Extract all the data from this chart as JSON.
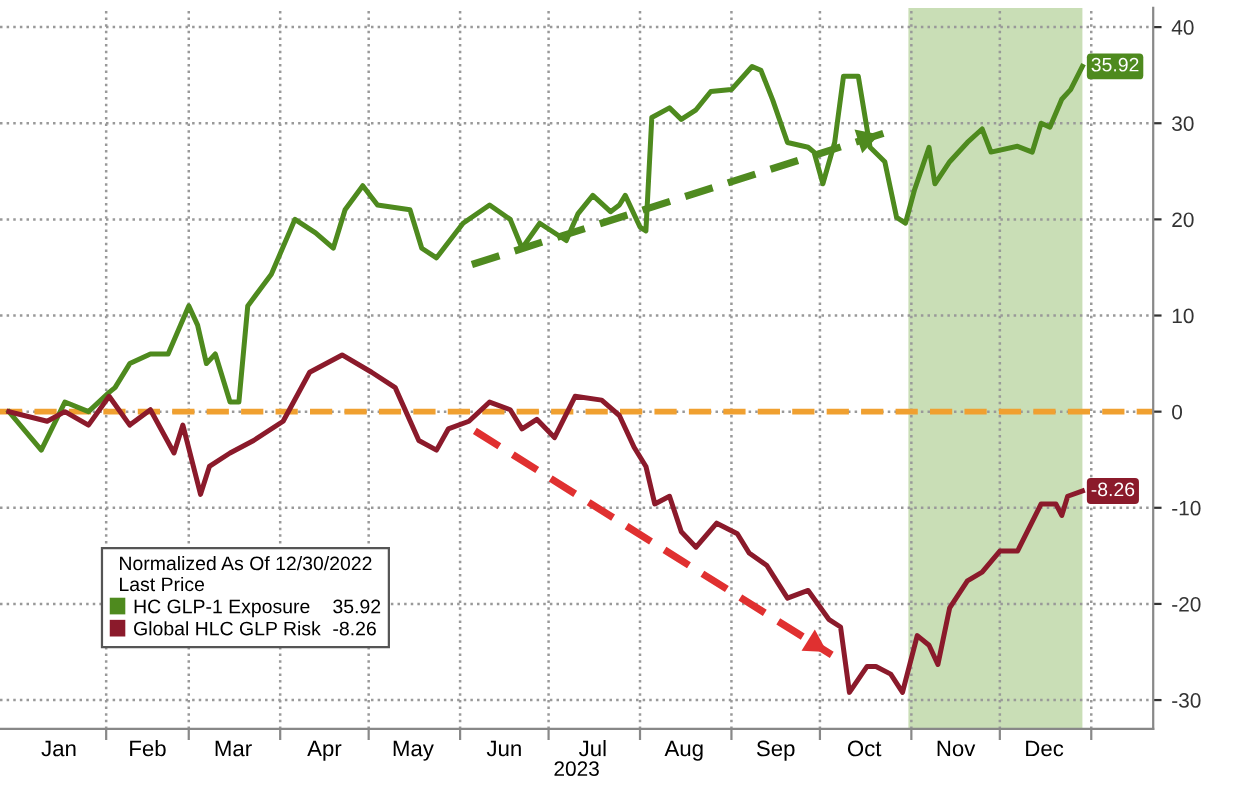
{
  "chart_data": {
    "type": "line",
    "xlabel": "2023",
    "legend_title": "Normalized As Of 12/30/2022\nLast Price",
    "xlim": [
      "2022-12-27",
      "2024-01-22"
    ],
    "ylim": [
      -33,
      42
    ],
    "xticks": [
      {
        "value": "2023-02-01",
        "label": null
      },
      {
        "value": "2023-03-01",
        "label": null
      },
      {
        "value": "2023-04-01",
        "label": null
      },
      {
        "value": "2023-05-01",
        "label": null
      },
      {
        "value": "2023-06-01",
        "label": null
      },
      {
        "value": "2023-07-01",
        "label": null
      },
      {
        "value": "2023-08-01",
        "label": null
      },
      {
        "value": "2023-09-01",
        "label": null
      },
      {
        "value": "2023-10-01",
        "label": null
      },
      {
        "value": "2023-11-01",
        "label": null
      },
      {
        "value": "2023-12-01",
        "label": null
      },
      {
        "value": "2024-01-01",
        "label": null
      },
      {
        "value": "2023-01-16",
        "label": "Jan"
      },
      {
        "value": "2023-02-15",
        "label": "Feb"
      },
      {
        "value": "2023-03-16",
        "label": "Mar"
      },
      {
        "value": "2023-04-16",
        "label": "Apr"
      },
      {
        "value": "2023-05-16",
        "label": "May"
      },
      {
        "value": "2023-06-16",
        "label": "Jun"
      },
      {
        "value": "2023-07-16",
        "label": "Jul"
      },
      {
        "value": "2023-08-16",
        "label": "Aug"
      },
      {
        "value": "2023-09-16",
        "label": "Sep"
      },
      {
        "value": "2023-10-16",
        "label": "Oct"
      },
      {
        "value": "2023-11-16",
        "label": "Nov"
      },
      {
        "value": "2023-12-16",
        "label": "Dec"
      }
    ],
    "yticks": [
      -30,
      -20,
      -10,
      0,
      10,
      20,
      30,
      40
    ],
    "grid": true,
    "legend": "bottom left",
    "ref_lines": [
      {
        "axis": "y",
        "value": 0,
        "label": null,
        "color": "#f0a030",
        "line_style": "dashed"
      }
    ],
    "bands": [
      {
        "axis": "x",
        "from": "2023-10-31",
        "to": "2023-12-29",
        "label": null,
        "color": "#c9deb6"
      }
    ],
    "series": [
      {
        "name": "HC GLP-1 Exposure",
        "color": "#4e8a1e",
        "x": [
          "2022-12-30",
          "2023-01-10",
          "2023-01-18",
          "2023-01-26",
          "2023-02-02",
          "2023-02-04",
          "2023-02-09",
          "2023-02-16",
          "2023-02-22",
          "2023-03-01",
          "2023-03-04",
          "2023-03-07",
          "2023-03-10",
          "2023-03-15",
          "2023-03-18",
          "2023-03-21",
          "2023-03-29",
          "2023-04-06",
          "2023-04-13",
          "2023-04-19",
          "2023-04-23",
          "2023-04-29",
          "2023-05-04",
          "2023-05-15",
          "2023-05-19",
          "2023-05-24",
          "2023-06-02",
          "2023-06-11",
          "2023-06-18",
          "2023-06-22",
          "2023-06-28",
          "2023-07-07",
          "2023-07-11",
          "2023-07-16",
          "2023-07-22",
          "2023-07-25",
          "2023-07-27",
          "2023-08-01",
          "2023-08-03",
          "2023-08-05",
          "2023-08-11",
          "2023-08-15",
          "2023-08-20",
          "2023-08-25",
          "2023-09-01",
          "2023-09-08",
          "2023-09-11",
          "2023-09-15",
          "2023-09-20",
          "2023-09-27",
          "2023-09-29",
          "2023-10-02",
          "2023-10-06",
          "2023-10-09",
          "2023-10-14",
          "2023-10-18",
          "2023-10-23",
          "2023-10-27",
          "2023-10-30",
          "2023-11-02",
          "2023-11-07",
          "2023-11-09",
          "2023-11-14",
          "2023-11-20",
          "2023-11-25",
          "2023-11-28",
          "2023-12-07",
          "2023-12-12",
          "2023-12-15",
          "2023-12-18",
          "2023-12-22",
          "2023-12-25",
          "2023-12-29"
        ],
        "values": [
          0,
          -4,
          1,
          0,
          2,
          2.5,
          5,
          6,
          6,
          11,
          9,
          5,
          6,
          1,
          1,
          11,
          14.3,
          20,
          18.6,
          17,
          21,
          23.5,
          21.5,
          21,
          17,
          16,
          19.6,
          21.5,
          20,
          17,
          19.6,
          17.8,
          20.6,
          22.5,
          20.8,
          21.5,
          22.5,
          19.2,
          18.8,
          30.6,
          31.6,
          30.4,
          31.4,
          33.3,
          33.5,
          35.9,
          35.5,
          32.4,
          28,
          27.5,
          27,
          23.7,
          28,
          34.9,
          34.9,
          27.5,
          26,
          20.2,
          19.6,
          23,
          27.5,
          23.7,
          26,
          28,
          29.4,
          27,
          27.6,
          27,
          30,
          29.6,
          32.5,
          33.5,
          35.92
        ],
        "value_labels": [
          null,
          null,
          null,
          null,
          null,
          null,
          null,
          null,
          null,
          null,
          null,
          null,
          null,
          null,
          null,
          null,
          null,
          null,
          null,
          null,
          null,
          null,
          null,
          null,
          null,
          null,
          null,
          null,
          null,
          null,
          null,
          null,
          null,
          null,
          null,
          null,
          null,
          null,
          null,
          null,
          null,
          null,
          null,
          null,
          null,
          null,
          null,
          null,
          null,
          null,
          null,
          null,
          null,
          null,
          null,
          null,
          null,
          null,
          null,
          null,
          null,
          null,
          null,
          null,
          null,
          null,
          null,
          null,
          null,
          null,
          null,
          null,
          "35.92"
        ]
      },
      {
        "name": "Global HLC GLP Risk",
        "color": "#8b1a2b",
        "x": [
          "2022-12-30",
          "2023-01-12",
          "2023-01-18",
          "2023-01-26",
          "2023-02-02",
          "2023-02-09",
          "2023-02-16",
          "2023-02-24",
          "2023-02-27",
          "2023-03-05",
          "2023-03-08",
          "2023-03-15",
          "2023-03-23",
          "2023-04-02",
          "2023-04-11",
          "2023-04-22",
          "2023-05-02",
          "2023-05-10",
          "2023-05-18",
          "2023-05-24",
          "2023-05-28",
          "2023-06-04",
          "2023-06-11",
          "2023-06-18",
          "2023-06-22",
          "2023-06-27",
          "2023-07-03",
          "2023-07-10",
          "2023-07-19",
          "2023-07-25",
          "2023-07-30",
          "2023-08-03",
          "2023-08-06",
          "2023-08-11",
          "2023-08-15",
          "2023-08-20",
          "2023-08-27",
          "2023-09-03",
          "2023-09-07",
          "2023-09-13",
          "2023-09-20",
          "2023-09-27",
          "2023-10-04",
          "2023-10-08",
          "2023-10-11",
          "2023-10-17",
          "2023-10-20",
          "2023-10-25",
          "2023-10-29",
          "2023-11-03",
          "2023-11-07",
          "2023-11-10",
          "2023-11-14",
          "2023-11-20",
          "2023-11-25",
          "2023-12-01",
          "2023-12-07",
          "2023-12-15",
          "2023-12-20",
          "2023-12-22",
          "2023-12-24",
          "2023-12-29"
        ],
        "values": [
          0,
          -1,
          0,
          -1.4,
          1.6,
          -1.4,
          0.2,
          -4.3,
          -1.4,
          -8.6,
          -5.7,
          -4.3,
          -3,
          -1,
          4.1,
          5.9,
          4.1,
          2.5,
          -3,
          -4,
          -1.8,
          -1,
          1,
          0.2,
          -1.8,
          -0.8,
          -2.7,
          1.6,
          1.2,
          -0.4,
          -3.7,
          -5.7,
          -9.6,
          -8.8,
          -12.5,
          -14.1,
          -11.6,
          -12.7,
          -14.7,
          -16,
          -19.4,
          -18.6,
          -21.6,
          -22.4,
          -29.2,
          -26.5,
          -26.5,
          -27.3,
          -29.2,
          -23.3,
          -24.3,
          -26.3,
          -20.4,
          -17.6,
          -16.7,
          -14.5,
          -14.5,
          -9.6,
          -9.6,
          -10.8,
          -8.8,
          -8.26
        ],
        "value_labels": [
          null,
          null,
          null,
          null,
          null,
          null,
          null,
          null,
          null,
          null,
          null,
          null,
          null,
          null,
          null,
          null,
          null,
          null,
          null,
          null,
          null,
          null,
          null,
          null,
          null,
          null,
          null,
          null,
          null,
          null,
          null,
          null,
          null,
          null,
          null,
          null,
          null,
          null,
          null,
          null,
          null,
          null,
          null,
          null,
          null,
          null,
          null,
          null,
          null,
          null,
          null,
          null,
          null,
          null,
          null,
          null,
          null,
          null,
          null,
          null,
          null,
          "-8.26"
        ]
      },
      {
        "type": "line",
        "color": "#4f8a1f",
        "line_style": "dashed",
        "x": [
          "2023-06-05",
          "2023-10-23"
        ],
        "values": [
          15.3,
          29
        ]
      },
      {
        "type": "line",
        "color": "#e03030",
        "line_style": "dashed",
        "x": [
          "2023-06-06",
          "2023-10-05"
        ],
        "values": [
          -2,
          -25.3
        ]
      }
    ]
  }
}
